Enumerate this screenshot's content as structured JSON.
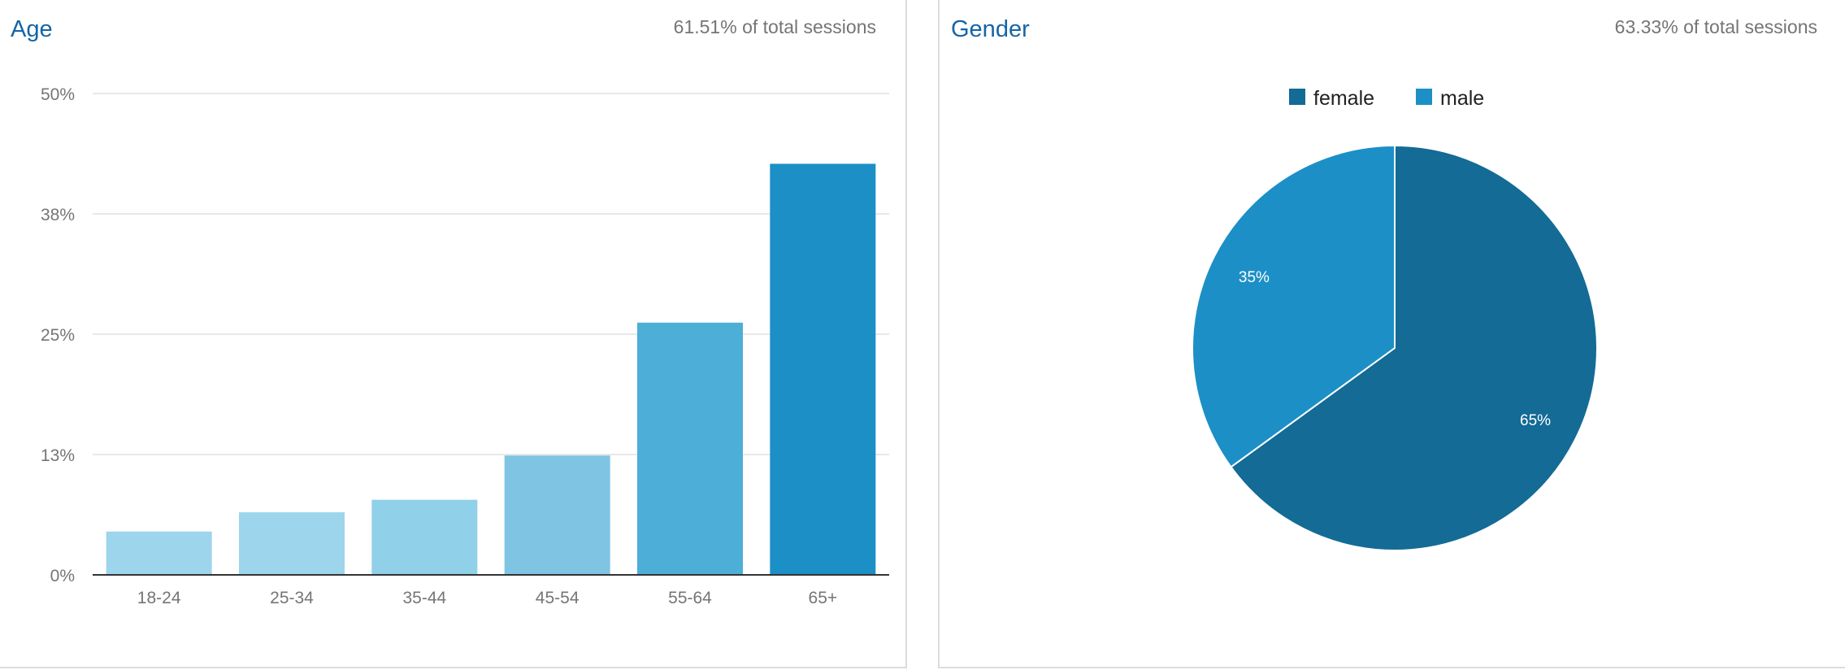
{
  "age_panel": {
    "title": "Age",
    "subtitle": "61.51% of total sessions"
  },
  "gender_panel": {
    "title": "Gender",
    "subtitle": "63.33% of total sessions"
  },
  "chart_data": [
    {
      "type": "bar",
      "title": "Age",
      "categories": [
        "18-24",
        "25-34",
        "35-44",
        "45-54",
        "55-64",
        "65+"
      ],
      "values": [
        4.5,
        6.5,
        7.8,
        12.4,
        26.2,
        42.7
      ],
      "y_ticks": [
        "0%",
        "13%",
        "25%",
        "38%",
        "50%"
      ],
      "ylim": [
        0,
        50
      ],
      "grid": true,
      "colors": [
        "#9dd5ec",
        "#9dd5ec",
        "#90d0e9",
        "#7fc5e3",
        "#4daed8",
        "#1c8fc6"
      ]
    },
    {
      "type": "pie",
      "title": "Gender",
      "legend_position": "top",
      "slices": [
        {
          "name": "female",
          "value": 65,
          "label": "65%",
          "color": "#136b96"
        },
        {
          "name": "male",
          "value": 35,
          "label": "35%",
          "color": "#1c8fc6"
        }
      ]
    }
  ]
}
